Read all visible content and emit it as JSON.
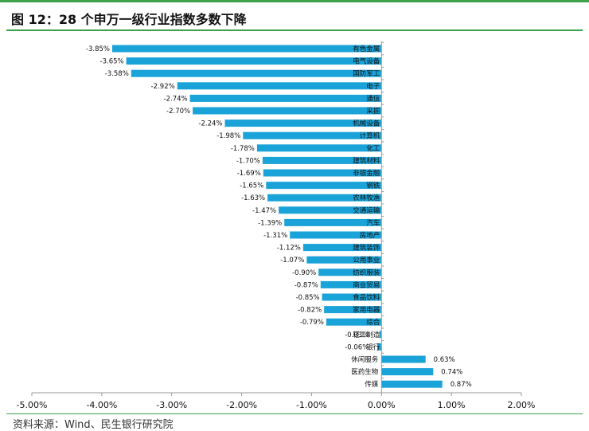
{
  "figure": {
    "title": "图 12：28 个申万一级行业指数多数下降",
    "source": "资料来源：Wind、民生银行研究院"
  },
  "chart_data": {
    "type": "bar",
    "orientation": "horizontal",
    "title": "图 12：28 个申万一级行业指数多数下降",
    "xlabel": "",
    "ylabel": "",
    "xlim": [
      -0.05,
      0.02
    ],
    "grid": false,
    "legend": "none",
    "bar_color": "#1aa3d9",
    "tick_labels": [
      "-5.00%",
      "-4.00%",
      "-3.00%",
      "-2.00%",
      "-1.00%",
      "0.00%",
      "1.00%",
      "2.00%"
    ],
    "ticks": [
      -0.05,
      -0.04,
      -0.03,
      -0.02,
      -0.01,
      0.0,
      0.01,
      0.02
    ],
    "categories": [
      "有色金属",
      "电气设备",
      "国防军工",
      "电子",
      "通信",
      "采掘",
      "机械设备",
      "计算机",
      "化工",
      "建筑材料",
      "非银金融",
      "钢铁",
      "农林牧渔",
      "交通运输",
      "汽车",
      "房地产",
      "建筑装饰",
      "公用事业",
      "纺织服装",
      "商业贸易",
      "食品饮料",
      "家用电器",
      "综合",
      "轻工制造",
      "银行",
      "休闲服务",
      "医药生物",
      "传媒"
    ],
    "values": [
      -0.0385,
      -0.0365,
      -0.0358,
      -0.0292,
      -0.0274,
      -0.027,
      -0.0224,
      -0.0198,
      -0.0178,
      -0.017,
      -0.0169,
      -0.0165,
      -0.0163,
      -0.0147,
      -0.0139,
      -0.0131,
      -0.0112,
      -0.0107,
      -0.009,
      -0.0087,
      -0.0085,
      -0.0082,
      -0.0079,
      -0.0003,
      -0.0006,
      0.0063,
      0.0074,
      0.0087
    ],
    "data_labels": [
      "-3.85%",
      "-3.65%",
      "-3.58%",
      "-2.92%",
      "-2.74%",
      "-2.70%",
      "-2.24%",
      "-1.98%",
      "-1.78%",
      "-1.70%",
      "-1.69%",
      "-1.65%",
      "-1.63%",
      "-1.47%",
      "-1.39%",
      "-1.31%",
      "-1.12%",
      "-1.07%",
      "-0.90%",
      "-0.87%",
      "-0.85%",
      "-0.82%",
      "-0.79%",
      "-0.03%",
      "-0.06%",
      "0.63%",
      "0.74%",
      "0.87%"
    ]
  }
}
